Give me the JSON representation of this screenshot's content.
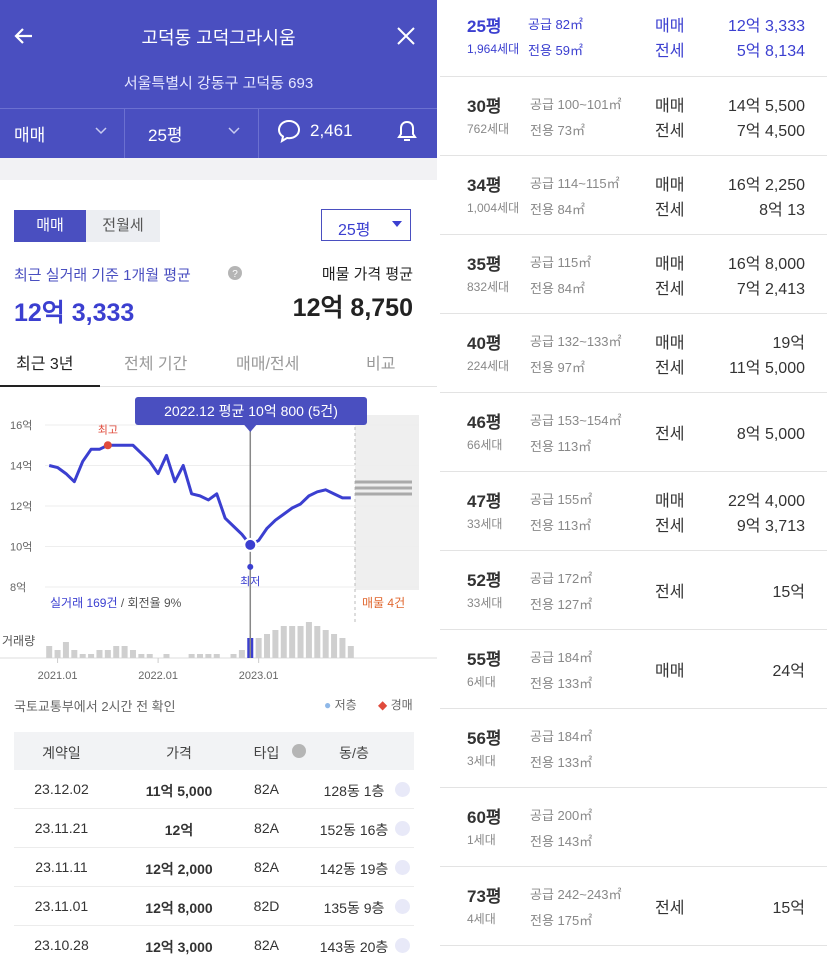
{
  "header": {
    "title": "고덕동 고덕그라시움",
    "address": "서울특별시 강동구 고덕동 693",
    "deal_filter": "매매",
    "size_filter": "25평",
    "comments": "2,461"
  },
  "summary": {
    "toggle": [
      "매매",
      "전월세"
    ],
    "size_select": "25평",
    "recent_label": "최근 실거래 기준 1개월 평균",
    "recent_price": "12억 3,333",
    "listing_label": "매물 가격 평균",
    "listing_price": "12억 8,750",
    "tabs": [
      "최근 3년",
      "전체 기간",
      "매매/전세",
      "비교"
    ]
  },
  "chart_data": {
    "type": "line",
    "tooltip": "2022.12 평균 10억 800 (5건)",
    "max_label": "최고",
    "min_label": "최저",
    "deals_label": "실거래 169건",
    "turnover_label": " / 회전율 9%",
    "listings_label": "매물 4건",
    "volume_label": "거래량",
    "x": [
      -1,
      0,
      1,
      2,
      3,
      4,
      5,
      6,
      7,
      8,
      9,
      10,
      11,
      12,
      13,
      14,
      15,
      16,
      17,
      18,
      19,
      20,
      21,
      22,
      23,
      24,
      25,
      26,
      27,
      28,
      29,
      30,
      31,
      32,
      33,
      34,
      35
    ],
    "series": [
      {
        "name": "평균",
        "color": "#3b3fd0",
        "values": [
          14.0,
          13.9,
          13.6,
          13.2,
          14.2,
          14.8,
          14.8,
          15.0,
          15.0,
          15.0,
          15.0,
          14.6,
          14.2,
          13.6,
          14.5,
          13.2,
          14.0,
          12.6,
          12.5,
          12.3,
          12.6,
          11.4,
          11.0,
          10.6,
          10.08,
          10.3,
          10.9,
          11.3,
          11.6,
          11.9,
          12.1,
          12.5,
          12.7,
          12.8,
          12.6,
          12.4,
          12.4
        ]
      }
    ],
    "volume": [
      3,
      2,
      4,
      2,
      1,
      1,
      2,
      2,
      3,
      3,
      2,
      1,
      1,
      0,
      1,
      0,
      0,
      1,
      1,
      1,
      1,
      0,
      1,
      2,
      5,
      5,
      6,
      7,
      8,
      8,
      8,
      9,
      8,
      7,
      6,
      5,
      3
    ],
    "volume_ylim": [
      0,
      10
    ],
    "max_index": 7,
    "min_index": 24,
    "xlim": [
      -1.5,
      35.5
    ],
    "xticks": [
      {
        "value": 0,
        "label": "2021.01"
      },
      {
        "value": 12,
        "label": "2022.01"
      },
      {
        "value": 24,
        "label": "2023.01"
      }
    ],
    "ylim": [
      8,
      16
    ],
    "yticks": [
      {
        "value": 16,
        "label": "16억"
      },
      {
        "value": 14,
        "label": "14억"
      },
      {
        "value": 12,
        "label": "12억"
      },
      {
        "value": 10,
        "label": "10억"
      },
      {
        "value": 8,
        "label": "8억"
      }
    ],
    "source": "국토교통부에서 2시간 전 확인",
    "legend": [
      "저층",
      "경매"
    ]
  },
  "table": {
    "header": [
      "계약일",
      "가격",
      "타입",
      "동/층"
    ],
    "rows": [
      [
        "23.12.02",
        "11억 5,000",
        "82A",
        "128동 1층"
      ],
      [
        "23.11.21",
        "12억",
        "82A",
        "152동 16층"
      ],
      [
        "23.11.11",
        "12억 2,000",
        "82A",
        "142동 19층"
      ],
      [
        "23.11.01",
        "12억 8,000",
        "82D",
        "135동 9층"
      ],
      [
        "23.10.28",
        "12억 3,000",
        "82A",
        "143동 20층"
      ]
    ]
  },
  "sizes": [
    {
      "pyeong": "25평",
      "supply": "공급 82㎡",
      "households": "1,964세대",
      "exclusive": "전용 59㎡",
      "deals": [
        {
          "type": "매매",
          "price": "12억 3,333"
        },
        {
          "type": "전세",
          "price": "5억 8,134"
        }
      ]
    },
    {
      "pyeong": "30평",
      "supply": "공급 100~101㎡",
      "households": "762세대",
      "exclusive": "전용 73㎡",
      "deals": [
        {
          "type": "매매",
          "price": "14억 5,500"
        },
        {
          "type": "전세",
          "price": "7억 4,500"
        }
      ]
    },
    {
      "pyeong": "34평",
      "supply": "공급 114~115㎡",
      "households": "1,004세대",
      "exclusive": "전용 84㎡",
      "deals": [
        {
          "type": "매매",
          "price": "16억 2,250"
        },
        {
          "type": "전세",
          "price": "8억 13"
        }
      ]
    },
    {
      "pyeong": "35평",
      "supply": "공급 115㎡",
      "households": "832세대",
      "exclusive": "전용 84㎡",
      "deals": [
        {
          "type": "매매",
          "price": "16억 8,000"
        },
        {
          "type": "전세",
          "price": "7억 2,413"
        }
      ]
    },
    {
      "pyeong": "40평",
      "supply": "공급 132~133㎡",
      "households": "224세대",
      "exclusive": "전용 97㎡",
      "deals": [
        {
          "type": "매매",
          "price": "19억"
        },
        {
          "type": "전세",
          "price": "11억 5,000"
        }
      ]
    },
    {
      "pyeong": "46평",
      "supply": "공급 153~154㎡",
      "households": "66세대",
      "exclusive": "전용 113㎡",
      "deals": [
        {
          "type": "전세",
          "price": "8억 5,000"
        }
      ]
    },
    {
      "pyeong": "47평",
      "supply": "공급 155㎡",
      "households": "33세대",
      "exclusive": "전용 113㎡",
      "deals": [
        {
          "type": "매매",
          "price": "22억 4,000"
        },
        {
          "type": "전세",
          "price": "9억 3,713"
        }
      ]
    },
    {
      "pyeong": "52평",
      "supply": "공급 172㎡",
      "households": "33세대",
      "exclusive": "전용 127㎡",
      "deals": [
        {
          "type": "전세",
          "price": "15억"
        }
      ]
    },
    {
      "pyeong": "55평",
      "supply": "공급 184㎡",
      "households": "6세대",
      "exclusive": "전용 133㎡",
      "deals": [
        {
          "type": "매매",
          "price": "24억"
        }
      ]
    },
    {
      "pyeong": "56평",
      "supply": "공급 184㎡",
      "households": "3세대",
      "exclusive": "전용 133㎡",
      "deals": []
    },
    {
      "pyeong": "60평",
      "supply": "공급 200㎡",
      "households": "1세대",
      "exclusive": "전용 143㎡",
      "deals": []
    },
    {
      "pyeong": "73평",
      "supply": "공급 242~243㎡",
      "households": "4세대",
      "exclusive": "전용 175㎡",
      "deals": [
        {
          "type": "전세",
          "price": "15억"
        }
      ]
    }
  ]
}
